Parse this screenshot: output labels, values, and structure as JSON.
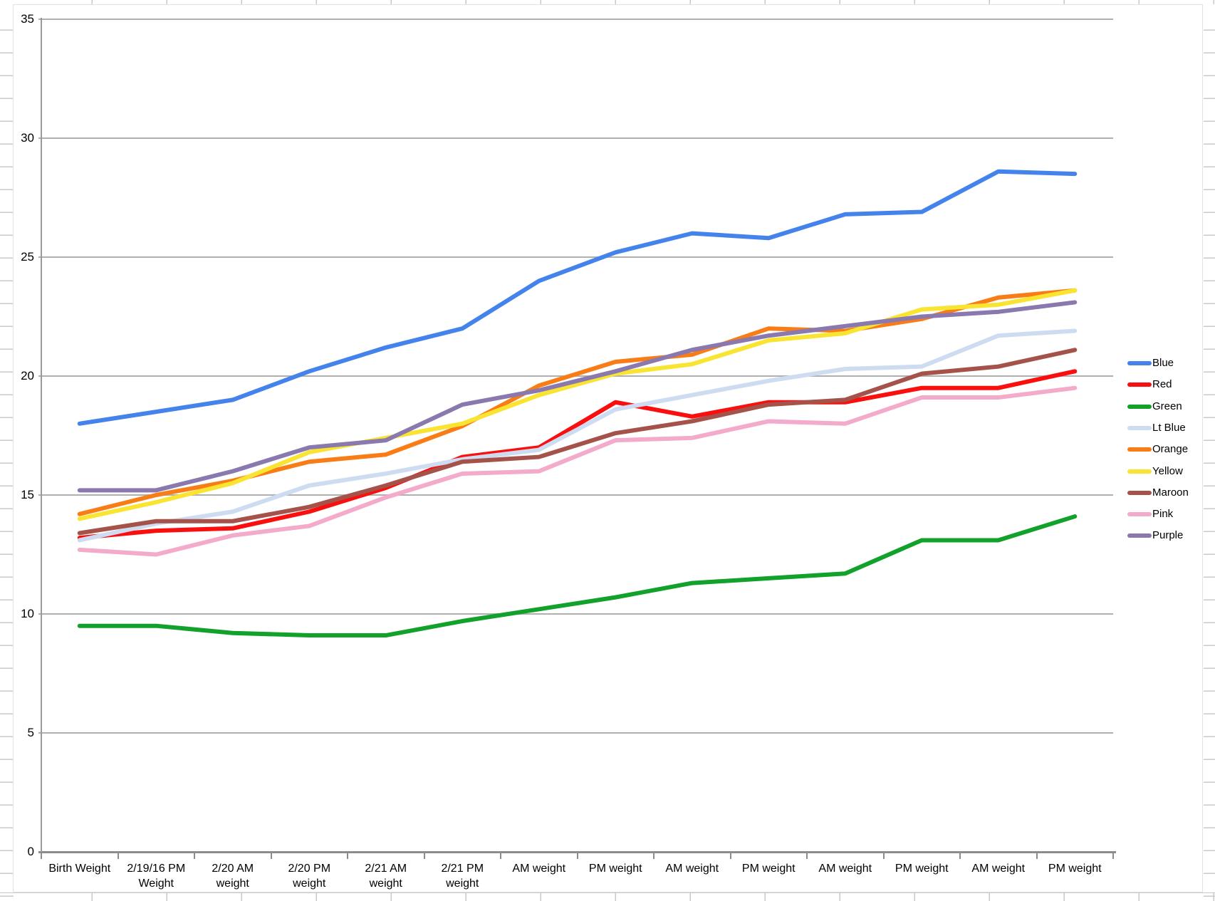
{
  "chart_data": {
    "type": "line",
    "title": "",
    "xlabel": "",
    "ylabel": "",
    "ylim": [
      0,
      35
    ],
    "yticks": [
      0,
      5,
      10,
      15,
      20,
      25,
      30,
      35
    ],
    "grid": true,
    "legend_position": "right",
    "categories": [
      "Birth Weight",
      "2/19/16 PM Weight",
      "2/20 AM weight",
      "2/20 PM weight",
      "2/21 AM weight",
      "2/21 PM weight",
      "AM weight",
      "PM weight",
      "AM weight",
      "PM weight",
      "AM weight",
      "PM weight",
      "AM weight",
      "PM weight"
    ],
    "series": [
      {
        "name": "Blue",
        "color": "#4583ec",
        "values": [
          18.0,
          18.5,
          19.0,
          20.2,
          21.2,
          22.0,
          24.0,
          25.2,
          26.0,
          25.8,
          26.8,
          26.9,
          28.6,
          28.5
        ]
      },
      {
        "name": "Red",
        "color": "#fa0f0f",
        "values": [
          13.2,
          13.5,
          13.6,
          14.3,
          15.3,
          16.6,
          17.0,
          18.9,
          18.3,
          18.9,
          18.9,
          19.5,
          19.5,
          20.2
        ]
      },
      {
        "name": "Green",
        "color": "#12a12b",
        "values": [
          9.5,
          9.5,
          9.2,
          9.1,
          9.1,
          9.7,
          10.2,
          10.7,
          11.3,
          11.5,
          11.7,
          13.1,
          13.1,
          14.1
        ]
      },
      {
        "name": "Lt Blue",
        "color": "#cddcf0",
        "values": [
          13.1,
          13.8,
          14.3,
          15.4,
          15.9,
          16.5,
          16.9,
          18.6,
          19.2,
          19.8,
          20.3,
          20.4,
          21.7,
          21.9
        ]
      },
      {
        "name": "Orange",
        "color": "#f97d16",
        "values": [
          14.2,
          15.0,
          15.6,
          16.4,
          16.7,
          17.9,
          19.6,
          20.6,
          20.9,
          22.0,
          21.9,
          22.4,
          23.3,
          23.6
        ]
      },
      {
        "name": "Yellow",
        "color": "#f9e431",
        "values": [
          14.0,
          14.7,
          15.5,
          16.8,
          17.4,
          18.0,
          19.2,
          20.1,
          20.5,
          21.5,
          21.8,
          22.8,
          23.0,
          23.6
        ]
      },
      {
        "name": "Maroon",
        "color": "#a5534a",
        "values": [
          13.4,
          13.9,
          13.9,
          14.5,
          15.4,
          16.4,
          16.6,
          17.6,
          18.1,
          18.8,
          19.0,
          20.1,
          20.4,
          21.1
        ]
      },
      {
        "name": "Pink",
        "color": "#f3aacb",
        "values": [
          12.7,
          12.5,
          13.3,
          13.7,
          14.9,
          15.9,
          16.0,
          17.3,
          17.4,
          18.1,
          18.0,
          19.1,
          19.1,
          19.5
        ]
      },
      {
        "name": "Purple",
        "color": "#8a79ae",
        "values": [
          15.2,
          15.2,
          16.0,
          17.0,
          17.3,
          18.8,
          19.4,
          20.2,
          21.1,
          21.7,
          22.1,
          22.5,
          22.7,
          23.1
        ]
      }
    ]
  }
}
